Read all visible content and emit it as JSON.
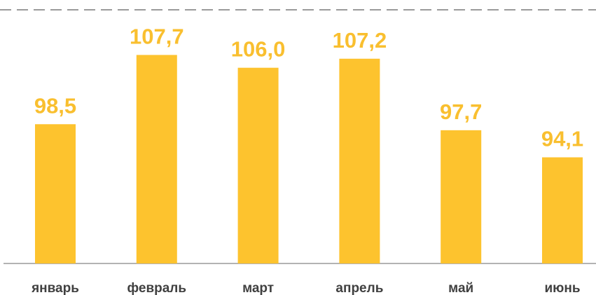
{
  "chart_data": {
    "type": "bar",
    "categories": [
      "январь",
      "февраль",
      "март",
      "апрель",
      "май",
      "июнь"
    ],
    "values": [
      98.5,
      107.7,
      106.0,
      107.2,
      97.7,
      94.1
    ],
    "value_labels": [
      "98,5",
      "107,7",
      "106,0",
      "107,2",
      "97,7",
      "94,1"
    ],
    "color": "#fdc32e",
    "ylim": [
      80,
      115
    ]
  }
}
